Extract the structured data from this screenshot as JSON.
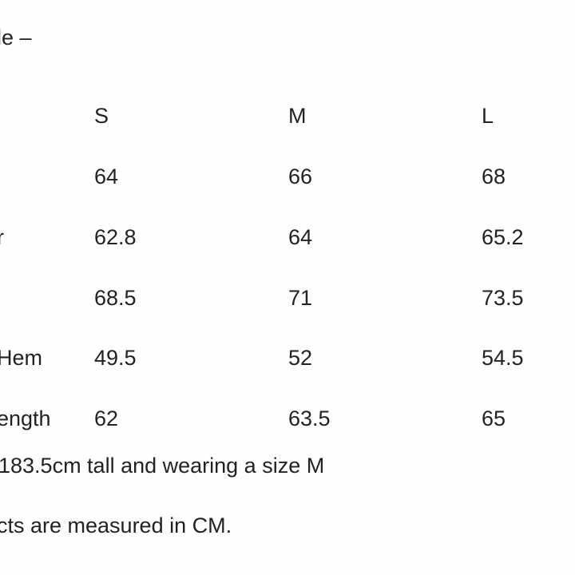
{
  "heading": "le  –",
  "columns": [
    "S",
    "M",
    "L"
  ],
  "rows": [
    {
      "label": "",
      "values": [
        "64",
        "66",
        "68"
      ]
    },
    {
      "label": "r",
      "values": [
        "62.8",
        "64",
        "65.2"
      ]
    },
    {
      "label": "",
      "values": [
        "68.5",
        "71",
        "73.5"
      ]
    },
    {
      "label": "Hem",
      "values": [
        "49.5",
        "52",
        "54.5"
      ]
    },
    {
      "label": "ength",
      "values": [
        "62",
        "63.5",
        "65"
      ]
    }
  ],
  "notes": [
    "183.5cm tall and wearing a size M",
    "cts are measured in CM."
  ]
}
